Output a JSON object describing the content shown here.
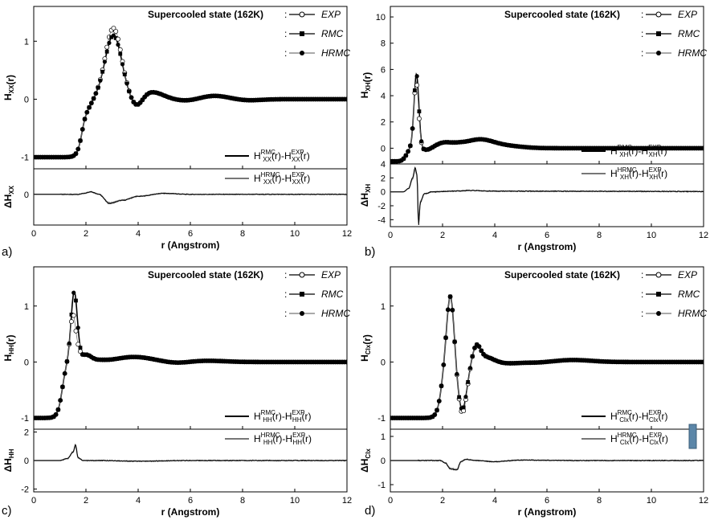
{
  "figure": {
    "colors": {
      "axis": "#000000",
      "rmc": "#000000",
      "hrmc": "#777777",
      "accent_box": "#5b86a8"
    },
    "legend_title": "Supercooled state (162K)",
    "legend_colon": ":",
    "legend_series": [
      "EXP",
      "RMC",
      "HRMC"
    ],
    "diff_prefix_rmc": "RMC",
    "diff_prefix_hrmc": "HRMC",
    "diff_prefix_exp": "EXP",
    "diff_letter": "H",
    "diff_arg": "(r)",
    "diff_minus": "-",
    "delta_symbol": "Δ",
    "ylabel_suffix": "(r)"
  },
  "chart_data": [
    {
      "id": "a",
      "type": "line",
      "panel_label": "a)",
      "pair": "XX",
      "title": "Supercooled state (162K)",
      "xlabel": "r (Angstrom)",
      "ylabel": "H_XX(r)",
      "diff_ylabel": "ΔH_XX",
      "xlim": [
        0,
        12
      ],
      "xticks": [
        0,
        2,
        4,
        6,
        8,
        10,
        12
      ],
      "ylim": [
        -1.2,
        1.6
      ],
      "yticks": [
        -1,
        0,
        1
      ],
      "diff_ylim": [
        -0.6,
        0.5
      ],
      "diff_yticks": [
        0
      ],
      "legend": [
        "EXP",
        "RMC",
        "HRMC"
      ],
      "diff_legend": [
        "H_XX^RMC(r)-H_XX^EXP(r)",
        "H_XX^HRMC(r)-H_XX^EXP(r)"
      ],
      "curve": {
        "r0": 0.0,
        "base": -1.0,
        "features": [
          {
            "mu": 3.05,
            "sig": 0.32,
            "amp": 2.2,
            "rise": 1.85
          },
          {
            "mu": 2.05,
            "sig": 0.18,
            "amp": -0.25
          },
          {
            "mu": 4.5,
            "sig": 0.45,
            "amp": 0.25
          },
          {
            "mu": 3.95,
            "sig": 0.22,
            "amp": -0.35
          },
          {
            "mu": 5.9,
            "sig": 0.45,
            "amp": -0.06
          },
          {
            "mu": 6.9,
            "sig": 0.55,
            "amp": 0.12
          },
          {
            "mu": 8.2,
            "sig": 0.5,
            "amp": -0.04
          }
        ],
        "exp_extra": {
          "mu": 3.05,
          "sig": 0.25,
          "amp": 0.25
        }
      },
      "diff_curve": {
        "points": [
          [
            0,
            0
          ],
          [
            1.7,
            0
          ],
          [
            1.9,
            0.02
          ],
          [
            2.2,
            0.05
          ],
          [
            2.5,
            0.0
          ],
          [
            2.9,
            -0.18
          ],
          [
            3.4,
            -0.12
          ],
          [
            4,
            -0.04
          ],
          [
            5,
            0.02
          ],
          [
            6,
            0.0
          ],
          [
            8,
            0.0
          ],
          [
            12,
            0.0
          ]
        ]
      }
    },
    {
      "id": "b",
      "type": "line",
      "panel_label": "b)",
      "pair": "XH",
      "title": "Supercooled state (162K)",
      "xlabel": "r (Angstrom)",
      "ylabel": "H_XH(r)",
      "diff_ylabel": "ΔH_XH",
      "xlim": [
        0,
        12
      ],
      "xticks": [
        0,
        2,
        4,
        6,
        8,
        10,
        12
      ],
      "ylim": [
        -1.2,
        10.8
      ],
      "yticks": [
        0,
        2,
        4,
        6,
        8,
        10
      ],
      "diff_ylim": [
        -5,
        4
      ],
      "diff_yticks": [
        -4,
        -2,
        0,
        2,
        4
      ],
      "legend": [
        "EXP",
        "RMC",
        "HRMC"
      ],
      "diff_legend": [
        "H_XH^RMC(r)-H_XH^EXP(r)",
        "H_XH^HRMC(r)-H_XH^EXP(r)"
      ],
      "curve": {
        "r0": 0.0,
        "base": -1.0,
        "features": [
          {
            "mu": 1.0,
            "sig": 0.09,
            "amp": 11.2,
            "rise": 0.8
          },
          {
            "mu": 0.75,
            "sig": 0.15,
            "amp": 1.2
          },
          {
            "mu": 1.4,
            "sig": 0.18,
            "amp": -0.3
          },
          {
            "mu": 2.05,
            "sig": 0.3,
            "amp": 0.8
          },
          {
            "mu": 2.6,
            "sig": 0.25,
            "amp": 0.3
          },
          {
            "mu": 3.4,
            "sig": 0.55,
            "amp": 1.3
          },
          {
            "mu": 4.5,
            "sig": 0.6,
            "amp": 0.3
          }
        ],
        "exp_extra": {
          "mu": 1.05,
          "sig": 0.07,
          "amp": -1.5
        }
      },
      "diff_curve": {
        "points": [
          [
            0,
            0
          ],
          [
            0.5,
            0
          ],
          [
            0.7,
            0.5
          ],
          [
            0.85,
            2.0
          ],
          [
            0.95,
            3.5
          ],
          [
            1.02,
            2.5
          ],
          [
            1.08,
            -4.8
          ],
          [
            1.15,
            -1.5
          ],
          [
            1.3,
            -0.3
          ],
          [
            1.6,
            0
          ],
          [
            2.5,
            0.1
          ],
          [
            3,
            0.2
          ],
          [
            4,
            0.1
          ],
          [
            12,
            0.05
          ]
        ]
      }
    },
    {
      "id": "c",
      "type": "line",
      "panel_label": "c)",
      "pair": "HH",
      "title": "Supercooled state (162K)",
      "xlabel": "r (Angstrom)",
      "ylabel": "H_HH(r)",
      "diff_ylabel": "ΔH_HH",
      "xlim": [
        0,
        12
      ],
      "xticks": [
        0,
        2,
        4,
        6,
        8,
        10,
        12
      ],
      "ylim": [
        -1.2,
        1.7
      ],
      "yticks": [
        -1,
        0,
        1
      ],
      "diff_ylim": [
        -2.2,
        2.2
      ],
      "diff_yticks": [
        -2,
        0,
        2
      ],
      "legend": [
        "EXP",
        "RMC",
        "HRMC"
      ],
      "diff_legend": [
        "H_HH^RMC(r)-H_HH^EXP(r)",
        "H_HH^HRMC(r)-H_HH^EXP(r)"
      ],
      "curve": {
        "r0": 0.0,
        "base": -1.0,
        "features": [
          {
            "mu": 1.55,
            "sig": 0.12,
            "amp": 2.5,
            "rise": 1.1
          },
          {
            "mu": 1.2,
            "sig": 0.15,
            "amp": 0.1
          },
          {
            "mu": 2.5,
            "sig": 0.25,
            "amp": 1.05
          },
          {
            "mu": 2.0,
            "sig": 0.2,
            "amp": 0.25
          },
          {
            "mu": 3.85,
            "sig": 0.7,
            "amp": 1.2
          },
          {
            "mu": 5.5,
            "sig": 0.45,
            "amp": 0.95
          },
          {
            "mu": 6.6,
            "sig": 0.7,
            "amp": 1.05
          },
          {
            "mu": 8.5,
            "sig": 1.0,
            "amp": 1.0
          }
        ],
        "exp_extra": {
          "mu": 1.6,
          "sig": 0.09,
          "amp": -1.1
        }
      },
      "diff_curve": {
        "points": [
          [
            0,
            0
          ],
          [
            1.0,
            0
          ],
          [
            1.3,
            0.15
          ],
          [
            1.5,
            0.6
          ],
          [
            1.6,
            1.1
          ],
          [
            1.7,
            0.2
          ],
          [
            1.9,
            0
          ],
          [
            2.5,
            0.0
          ],
          [
            4,
            -0.05
          ],
          [
            6,
            0.0
          ],
          [
            12,
            0.0
          ]
        ]
      }
    },
    {
      "id": "d",
      "type": "line",
      "panel_label": "d)",
      "pair": "Clx",
      "title": "Supercooled state (162K)",
      "xlabel": "r (Angstrom)",
      "ylabel": "H_Clx(r)",
      "diff_ylabel": "ΔH_Clx",
      "xlim": [
        0,
        12
      ],
      "xticks": [
        0,
        2,
        4,
        6,
        8,
        10,
        12
      ],
      "ylim": [
        -1.2,
        1.7
      ],
      "yticks": [
        -1,
        0,
        1
      ],
      "diff_ylim": [
        -1.3,
        1.3
      ],
      "diff_yticks": [
        -1,
        0,
        1
      ],
      "legend": [
        "EXP",
        "RMC",
        "HRMC"
      ],
      "diff_legend": [
        "H_Clx^RMC(r)-H_Clx^EXP(r)",
        "H_Clx^HRMC(r)-H_Clx^EXP(r)"
      ],
      "curve": {
        "r0": 0.0,
        "base": -1.0,
        "features": [
          {
            "mu": 2.3,
            "sig": 0.14,
            "amp": 2.45,
            "rise": 1.95
          },
          {
            "mu": 2.75,
            "sig": 0.18,
            "amp": -0.9
          },
          {
            "mu": 3.3,
            "sig": 0.15,
            "amp": 1.6
          },
          {
            "mu": 3.65,
            "sig": 0.3,
            "amp": 1.2
          },
          {
            "mu": 4.5,
            "sig": 0.4,
            "amp": 0.95
          },
          {
            "mu": 5.6,
            "sig": 0.5,
            "amp": 0.97
          },
          {
            "mu": 7.0,
            "sig": 0.7,
            "amp": 1.08
          },
          {
            "mu": 9.0,
            "sig": 1.2,
            "amp": 1.0
          }
        ],
        "exp_extra": {
          "mu": 2.8,
          "sig": 0.15,
          "amp": -0.12
        }
      },
      "diff_curve": {
        "points": [
          [
            0,
            0
          ],
          [
            1.9,
            0
          ],
          [
            2.1,
            -0.1
          ],
          [
            2.3,
            -0.35
          ],
          [
            2.55,
            -0.4
          ],
          [
            2.7,
            -0.05
          ],
          [
            2.9,
            0.05
          ],
          [
            3.3,
            0.0
          ],
          [
            4,
            -0.05
          ],
          [
            5,
            0.02
          ],
          [
            7,
            0.0
          ],
          [
            12,
            0.0
          ]
        ]
      }
    }
  ]
}
